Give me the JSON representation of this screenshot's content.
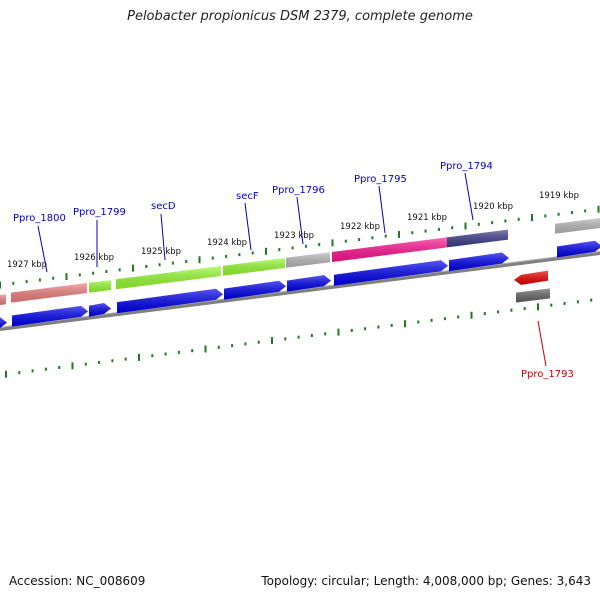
{
  "title": "Pelobacter propionicus DSM 2379, complete genome",
  "footer": {
    "accession": "Accession: NC_008609",
    "summary": "Topology: circular; Length: 4,008,000 bp; Genes: 3,643"
  },
  "colors": {
    "gene_label": "#0000c0",
    "highlight_label": "#cc0000",
    "cds": "#0000ee",
    "tick": "#1f7a1f",
    "backbone": "#808080"
  },
  "kbp_labels": [
    "1927 kbp",
    "1926 kbp",
    "1925 kbp",
    "1924 kbp",
    "1923 kbp",
    "1922 kbp",
    "1921 kbp",
    "1920 kbp",
    "1919 kbp"
  ],
  "genes": [
    {
      "name": "Ppro_1800",
      "color": "#0000c0"
    },
    {
      "name": "Ppro_1799",
      "color": "#0000c0"
    },
    {
      "name": "secD",
      "color": "#0000c0"
    },
    {
      "name": "secF",
      "color": "#0000c0"
    },
    {
      "name": "Ppro_1796",
      "color": "#0000c0"
    },
    {
      "name": "Ppro_1795",
      "color": "#0000c0"
    },
    {
      "name": "Ppro_1794",
      "color": "#0000c0"
    },
    {
      "name": "Ppro_1793",
      "color": "#cc0000"
    }
  ]
}
